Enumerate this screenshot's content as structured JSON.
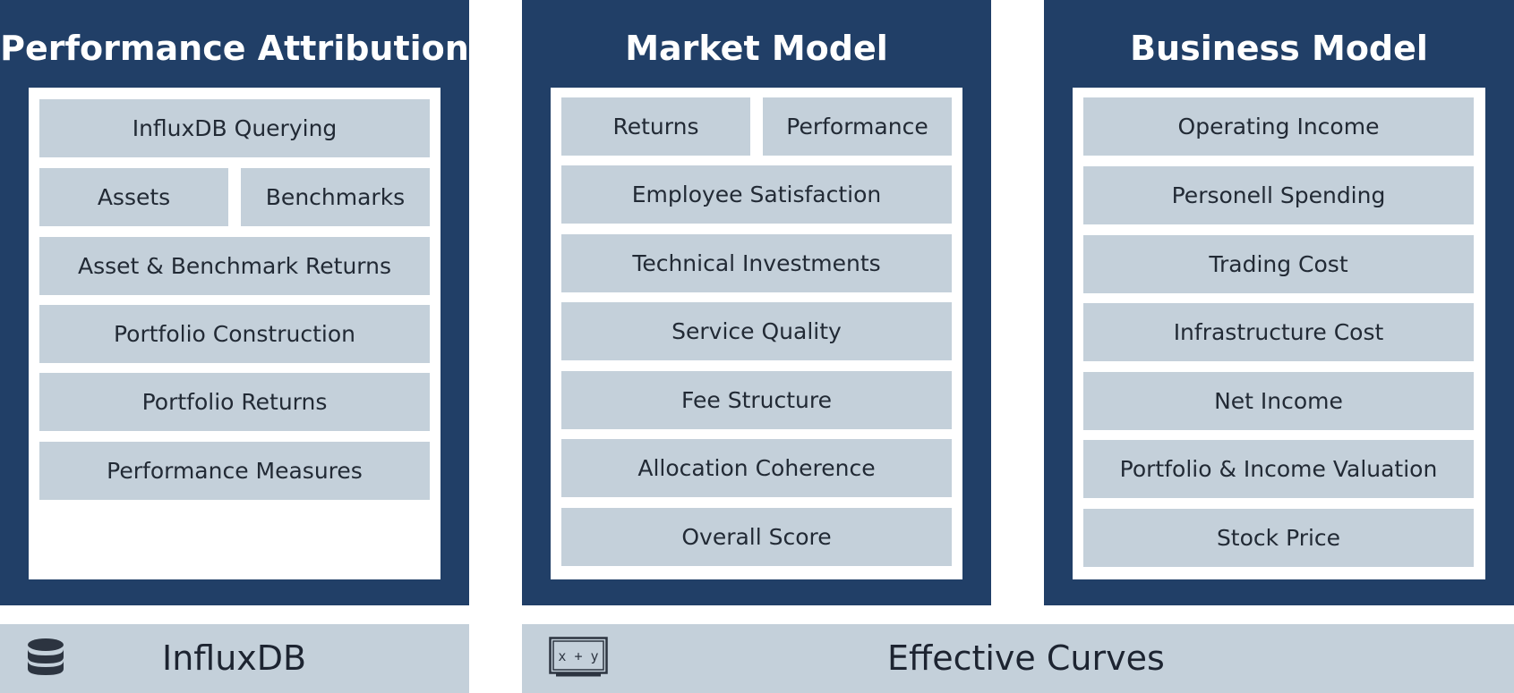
{
  "performance_attribution": {
    "title": "Performance Attribution",
    "rows": {
      "querying": "InfluxDB Querying",
      "assets": "Assets",
      "benchmarks": "Benchmarks",
      "asset_benchmark_returns": "Asset & Benchmark Returns",
      "portfolio_construction": "Portfolio Construction",
      "portfolio_returns": "Portfolio Returns",
      "performance_measures": "Performance Measures"
    }
  },
  "market_model": {
    "title": "Market Model",
    "rows": {
      "returns": "Returns",
      "performance": "Performance",
      "employee_satisfaction": "Employee Satisfaction",
      "technical_investments": "Technical Investments",
      "service_quality": "Service Quality",
      "fee_structure": "Fee Structure",
      "allocation_coherence": "Allocation Coherence",
      "overall_score": "Overall Score"
    }
  },
  "business_model": {
    "title": "Business Model",
    "rows": {
      "operating_income": "Operating Income",
      "personell_spending": "Personell Spending",
      "trading_cost": "Trading Cost",
      "infrastructure_cost": "Infrastructure Cost",
      "net_income": "Net Income",
      "portfolio_income_valuation": "Portfolio & Income Valuation",
      "stock_price": "Stock Price"
    }
  },
  "footers": {
    "influxdb": {
      "label": "InfluxDB",
      "icon": "database-icon"
    },
    "effective_curves": {
      "label": "Effective Curves",
      "icon": "formula-board-icon",
      "icon_text": "x + y"
    }
  },
  "colors": {
    "panel": "#213f67",
    "cell": "#c4d0da",
    "footer": "#c4d0da",
    "icon": "#2c3440"
  }
}
